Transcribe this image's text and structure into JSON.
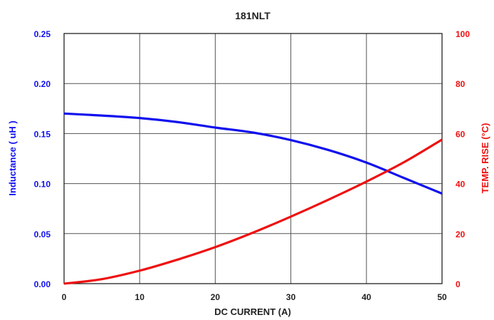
{
  "chart_data": {
    "type": "line",
    "title": "181NLT",
    "xlabel": "DC CURRENT (A)",
    "ylabel_left": "Inductance  ( uH )",
    "ylabel_right": "TEMP. RISE (°C)",
    "xlim": [
      0,
      50
    ],
    "ylim_left": [
      0,
      0.25
    ],
    "ylim_right": [
      0,
      100
    ],
    "x_ticks": [
      "0",
      "10",
      "20",
      "30",
      "40",
      "50"
    ],
    "y_left_ticks": [
      "0.00",
      "0.05",
      "0.10",
      "0.15",
      "0.20",
      "0.25"
    ],
    "y_right_ticks": [
      "0",
      "20",
      "40",
      "60",
      "80",
      "100"
    ],
    "grid": true,
    "legend": "none",
    "colors": {
      "inductance": "#1010ee",
      "temp_rise": "#ee1010",
      "grid": "#555555",
      "text": "#222222"
    },
    "series": [
      {
        "axis": "left",
        "color": "#1010ee",
        "x": [
          0,
          5,
          10,
          15,
          20,
          25,
          30,
          35,
          40,
          45,
          50
        ],
        "y": [
          0.17,
          0.168,
          0.1655,
          0.1615,
          0.156,
          0.151,
          0.1435,
          0.1335,
          0.121,
          0.1055,
          0.09
        ]
      },
      {
        "axis": "right",
        "color": "#ee1010",
        "x": [
          0,
          5,
          10,
          15,
          20,
          25,
          30,
          35,
          40,
          45,
          50
        ],
        "y": [
          0,
          1.8,
          5.2,
          9.6,
          14.6,
          20.4,
          26.8,
          33.6,
          40.8,
          48.6,
          57.6
        ]
      }
    ]
  }
}
